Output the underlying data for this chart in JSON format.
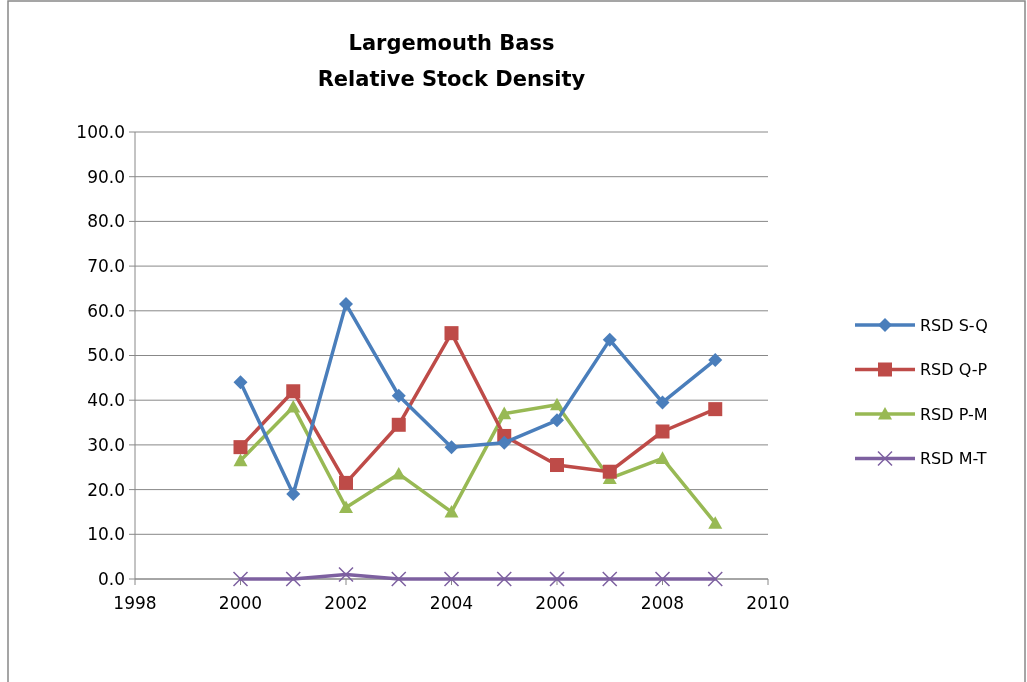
{
  "chart_data": {
    "type": "line",
    "title": "Largemouth Bass\nRelative Stock Density",
    "x": [
      2000,
      2001,
      2002,
      2003,
      2004,
      2005,
      2006,
      2007,
      2008,
      2009
    ],
    "series": [
      {
        "name": "RSD S-Q",
        "color": "#4a7ebb",
        "marker": "diamond",
        "values": [
          44,
          19,
          61.5,
          41,
          29.5,
          30.5,
          35.5,
          53.5,
          39.5,
          49
        ]
      },
      {
        "name": "RSD Q-P",
        "color": "#be4b48",
        "marker": "square",
        "values": [
          29.5,
          42,
          21.5,
          34.5,
          55,
          32,
          25.5,
          24,
          33,
          38
        ]
      },
      {
        "name": "RSD P-M",
        "color": "#98b954",
        "marker": "triangle",
        "values": [
          26.5,
          38.5,
          16,
          23.5,
          15,
          37,
          39,
          22.5,
          27,
          12.5
        ]
      },
      {
        "name": "RSD M-T",
        "color": "#7d60a0",
        "marker": "cross",
        "values": [
          0,
          0,
          1,
          0,
          0,
          0,
          0,
          0,
          0,
          0
        ]
      }
    ],
    "xlim": [
      1998,
      2010
    ],
    "xticks": [
      1998,
      2000,
      2002,
      2004,
      2006,
      2008,
      2010
    ],
    "ylim": [
      0,
      100
    ],
    "yticks": [
      {
        "value": 0,
        "label": "0.0"
      },
      {
        "value": 10,
        "label": "10.0"
      },
      {
        "value": 20,
        "label": "20.0"
      },
      {
        "value": 30,
        "label": "30.0"
      },
      {
        "value": 40,
        "label": "40.0"
      },
      {
        "value": 50,
        "label": "50.0"
      },
      {
        "value": 60,
        "label": "60.0"
      },
      {
        "value": 70,
        "label": "70.0"
      },
      {
        "value": 80,
        "label": "80.0"
      },
      {
        "value": 90,
        "label": "90.0"
      },
      {
        "value": 100,
        "label": "100.0"
      }
    ],
    "grid": "y",
    "legend": "right",
    "line_style": "solid"
  }
}
